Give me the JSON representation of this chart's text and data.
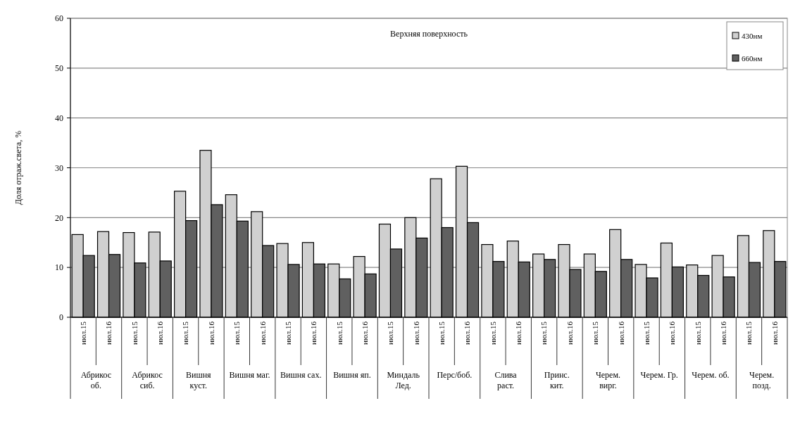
{
  "chart_data": {
    "type": "bar",
    "title": "Верхняя поверхность",
    "ylabel": "Доля отраж.света, %",
    "categories": [
      "июл.15",
      "июл.16",
      "июл.15",
      "июл.16",
      "июл.15",
      "июл.16",
      "июл.15",
      "июл.16",
      "июл.15",
      "июл.16",
      "июл.15",
      "июл.16",
      "июл.15",
      "июл.16",
      "июл.15",
      "июл.16",
      "июл.15",
      "июл.16",
      "июл.15",
      "июл.16",
      "июл.15",
      "июл.16",
      "июл.15",
      "июл.16",
      "июл.15",
      "июл.16",
      "июл.15",
      "июл.16"
    ],
    "annotations": [
      "Абрикос об.",
      "Абрикос сиб.",
      "Вишня куст.",
      "Вишня маг.",
      "Вишня сах.",
      "Вишня яп.",
      "Миндаль Лед.",
      "Перс/боб.",
      "Слива раст.",
      "Принс. кит.",
      "Черем. вирг.",
      "Черем. Гр.",
      "Черем. об.",
      "Черем. позд."
    ],
    "series": [
      {
        "name": "430нм",
        "color": "#d0d0d0",
        "values": [
          16.6,
          17.2,
          17.0,
          17.1,
          25.3,
          33.5,
          24.6,
          21.2,
          14.8,
          15.0,
          10.7,
          12.2,
          18.7,
          20.0,
          27.8,
          30.3,
          14.6,
          15.3,
          12.7,
          14.6,
          12.7,
          17.6,
          10.6,
          14.9,
          10.5,
          12.4,
          16.4,
          17.4
        ]
      },
      {
        "name": "660нм",
        "color": "#606060",
        "values": [
          12.4,
          12.6,
          10.9,
          11.3,
          19.4,
          22.6,
          19.3,
          14.4,
          10.6,
          10.7,
          7.7,
          8.7,
          13.7,
          15.9,
          18.0,
          19.0,
          11.2,
          11.1,
          11.6,
          9.6,
          9.2,
          11.6,
          7.9,
          10.1,
          8.4,
          8.1,
          11.0,
          11.2
        ]
      }
    ],
    "ylim": [
      0,
      60
    ],
    "yticks": [
      0,
      10,
      20,
      30,
      40,
      50,
      60
    ],
    "grid": "y",
    "legend": "top right"
  }
}
